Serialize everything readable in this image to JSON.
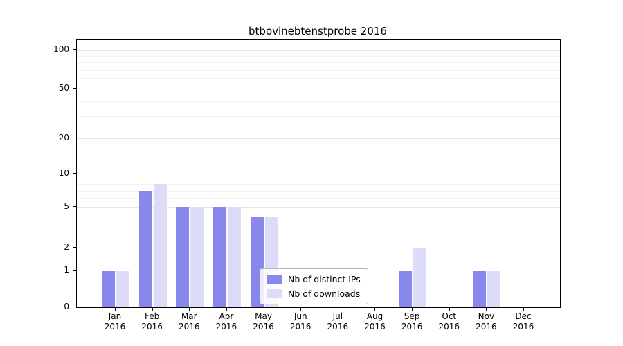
{
  "chart_data": {
    "type": "bar",
    "title": "btbovinebtenstprobe 2016",
    "categories": [
      "Jan",
      "Feb",
      "Mar",
      "Apr",
      "May",
      "Jun",
      "Jul",
      "Aug",
      "Sep",
      "Oct",
      "Nov",
      "Dec"
    ],
    "year": "2016",
    "series": [
      {
        "name": "Nb of distinct IPs",
        "color": "#8888ec",
        "values": [
          1,
          7,
          5,
          5,
          4,
          0,
          0,
          0,
          1,
          0,
          1,
          0
        ]
      },
      {
        "name": "Nb of downloads",
        "color": "#dcdcf9",
        "values": [
          1,
          8,
          5,
          5,
          4,
          0,
          0,
          0,
          2,
          0,
          1,
          0
        ]
      }
    ],
    "yticks": [
      0,
      1,
      2,
      5,
      10,
      20,
      50,
      100
    ],
    "yscale": "log-like (0,1,2,5,10,20,50,100)",
    "ylim": [
      0,
      100
    ],
    "grid": true,
    "legend_position": "lower center inside plot"
  }
}
